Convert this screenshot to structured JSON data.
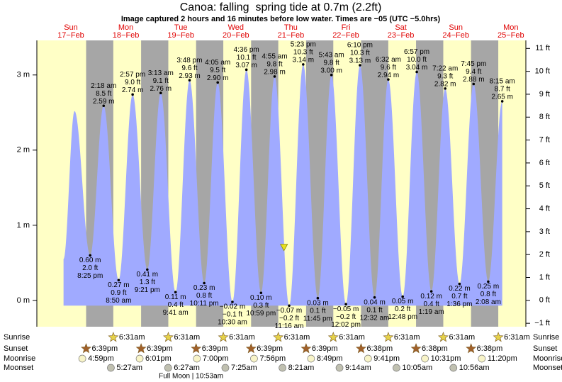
{
  "chart_data": {
    "type": "tide",
    "title": "Canoa: falling  spring tide at 0.7m (2.2ft)",
    "subtitle": "Image captured 2 hours and 16 minutes before low water. Times are −05 (UTC −5.0hrs)",
    "days": [
      {
        "weekday": "Sun",
        "date": "17−Feb"
      },
      {
        "weekday": "Mon",
        "date": "18−Feb"
      },
      {
        "weekday": "Tue",
        "date": "19−Feb"
      },
      {
        "weekday": "Wed",
        "date": "20−Feb"
      },
      {
        "weekday": "Thu",
        "date": "21−Feb"
      },
      {
        "weekday": "Fri",
        "date": "22−Feb"
      },
      {
        "weekday": "Sat",
        "date": "23−Feb"
      },
      {
        "weekday": "Sun",
        "date": "24−Feb"
      },
      {
        "weekday": "Mon",
        "date": "25−Feb"
      }
    ],
    "ylim": [
      -0.35,
      3.46
    ],
    "yticks": [
      {
        "value": 0,
        "label": "0 m"
      },
      {
        "value": 1,
        "label": "1 m"
      },
      {
        "value": 2,
        "label": "2 m"
      },
      {
        "value": 3,
        "label": "3 m"
      }
    ],
    "y2lim": [
      -1.15,
      11.35
    ],
    "y2ticks": [
      {
        "value": -1,
        "label": "−1 ft"
      },
      {
        "value": 0,
        "label": "0 ft"
      },
      {
        "value": 1,
        "label": "1 ft"
      },
      {
        "value": 2,
        "label": "2 ft"
      },
      {
        "value": 3,
        "label": "3 ft"
      },
      {
        "value": 4,
        "label": "4 ft"
      },
      {
        "value": 5,
        "label": "5 ft"
      },
      {
        "value": 6,
        "label": "6 ft"
      },
      {
        "value": 7,
        "label": "7 ft"
      },
      {
        "value": 8,
        "label": "8 ft"
      },
      {
        "value": 9,
        "label": "9 ft"
      },
      {
        "value": 10,
        "label": "10 ft"
      },
      {
        "value": 11,
        "label": "11 ft"
      }
    ],
    "tides": [
      {
        "day": 0,
        "hour": 8.8,
        "value": 0.55
      },
      {
        "day": 0,
        "hour": 13.6,
        "value": 2.52
      },
      {
        "day": 0,
        "time": "8:25 pm",
        "value": 0.6,
        "value_label": "0.60 m",
        "feet": "2.0 ft"
      },
      {
        "day": 1,
        "time": "2:18 am",
        "value": 2.59,
        "value_label": "2.59 m",
        "feet": "8.5 ft"
      },
      {
        "day": 1,
        "time": "8:50 am",
        "value": 0.27,
        "value_label": "0.27 m",
        "feet": "0.9 ft"
      },
      {
        "day": 1,
        "time": "2:57 pm",
        "value": 2.74,
        "value_label": "2.74 m",
        "feet": "9.0 ft"
      },
      {
        "day": 1,
        "time": "9:21 pm",
        "value": 0.41,
        "value_label": "0.41 m",
        "feet": "1.3 ft"
      },
      {
        "day": 2,
        "time": "3:13 am",
        "value": 2.76,
        "value_label": "2.76 m",
        "feet": "9.1 ft"
      },
      {
        "day": 2,
        "time": "9:41 am",
        "value": 0.11,
        "value_label": "0.11 m",
        "feet": "0.4 ft"
      },
      {
        "day": 2,
        "time": "3:48 pm",
        "value": 2.93,
        "value_label": "2.93 m",
        "feet": "9.6 ft"
      },
      {
        "day": 2,
        "time": "10:11 pm",
        "value": 0.23,
        "value_label": "0.23 m",
        "feet": "0.8 ft"
      },
      {
        "day": 3,
        "time": "4:05 am",
        "value": 2.9,
        "value_label": "2.90 m",
        "feet": "9.5 ft"
      },
      {
        "day": 3,
        "time": "10:30 am",
        "value": -0.02,
        "value_label": "−0.02 m",
        "feet": "−0.1 ft"
      },
      {
        "day": 3,
        "time": "4:36 pm",
        "value": 3.07,
        "value_label": "3.07 m",
        "feet": "10.1 ft"
      },
      {
        "day": 3,
        "time": "10:59 pm",
        "value": 0.1,
        "value_label": "0.10 m",
        "feet": "0.3 ft"
      },
      {
        "day": 4,
        "time": "4:55 am",
        "value": 2.98,
        "value_label": "2.98 m",
        "feet": "9.8 ft"
      },
      {
        "day": 4,
        "time": "11:16 am",
        "value": -0.07,
        "value_label": "−0.07 m",
        "feet": "−0.2 ft"
      },
      {
        "day": 4,
        "time": "5:23 pm",
        "value": 3.14,
        "value_label": "3.14 m",
        "feet": "10.3 ft"
      },
      {
        "day": 4,
        "time": "11:45 pm",
        "value": 0.03,
        "value_label": "0.03 m",
        "feet": "0.1 ft"
      },
      {
        "day": 5,
        "time": "5:43 am",
        "value": 3.0,
        "value_label": "3.00 m",
        "feet": "9.8 ft"
      },
      {
        "day": 5,
        "time": "12:02 pm",
        "value": -0.05,
        "value_label": "−0.05 m",
        "feet": "−0.2 ft"
      },
      {
        "day": 5,
        "time": "6:10 pm",
        "value": 3.13,
        "value_label": "3.13 m",
        "feet": "10.3 ft"
      },
      {
        "day": 6,
        "time": "12:32 am",
        "value": 0.04,
        "value_label": "0.04 m",
        "feet": "0.1 ft"
      },
      {
        "day": 6,
        "time": "6:32 am",
        "value": 2.94,
        "value_label": "2.94 m",
        "feet": "9.6 ft"
      },
      {
        "day": 6,
        "time": "12:48 pm",
        "value": 0.05,
        "value_label": "0.05 m",
        "feet": "0.2 ft"
      },
      {
        "day": 6,
        "time": "6:57 pm",
        "value": 3.04,
        "value_label": "3.04 m",
        "feet": "10.0 ft"
      },
      {
        "day": 7,
        "time": "1:19 am",
        "value": 0.12,
        "value_label": "0.12 m",
        "feet": "0.4 ft"
      },
      {
        "day": 7,
        "time": "7:22 am",
        "value": 2.82,
        "value_label": "2.82 m",
        "feet": "9.3 ft"
      },
      {
        "day": 7,
        "time": "1:36 pm",
        "value": 0.22,
        "value_label": "0.22 m",
        "feet": "0.7 ft"
      },
      {
        "day": 7,
        "time": "7:45 pm",
        "value": 2.88,
        "value_label": "2.88 m",
        "feet": "9.4 ft"
      },
      {
        "day": 8,
        "time": "2:08 am",
        "value": 0.25,
        "value_label": "0.25 m",
        "feet": "0.8 ft"
      },
      {
        "day": 8,
        "time": "8:15 am",
        "value": 2.65,
        "value_label": "2.65 m",
        "feet": "8.7 ft"
      }
    ],
    "now": {
      "day": 4,
      "hour": 9.0,
      "value": 0.7
    },
    "events": [
      {
        "name": "Sunrise",
        "icon": "sunrise",
        "items": [
          {
            "day": 1,
            "time": "6:31am"
          },
          {
            "day": 2,
            "time": "6:31am"
          },
          {
            "day": 3,
            "time": "6:31am"
          },
          {
            "day": 4,
            "time": "6:31am"
          },
          {
            "day": 5,
            "time": "6:31am"
          },
          {
            "day": 6,
            "time": "6:31am"
          },
          {
            "day": 7,
            "time": "6:31am"
          },
          {
            "day": 8,
            "time": "6:31am"
          }
        ]
      },
      {
        "name": "Sunset",
        "icon": "sunset",
        "items": [
          {
            "day": 0,
            "time": "6:39pm"
          },
          {
            "day": 1,
            "time": "6:39pm"
          },
          {
            "day": 2,
            "time": "6:39pm"
          },
          {
            "day": 3,
            "time": "6:39pm"
          },
          {
            "day": 4,
            "time": "6:39pm"
          },
          {
            "day": 5,
            "time": "6:38pm"
          },
          {
            "day": 6,
            "time": "6:38pm"
          },
          {
            "day": 7,
            "time": "6:38pm"
          }
        ]
      },
      {
        "name": "Moonrise",
        "icon": "moonrise",
        "items": [
          {
            "day": 0,
            "time": "4:59pm"
          },
          {
            "day": 1,
            "time": "6:01pm"
          },
          {
            "day": 2,
            "time": "7:00pm"
          },
          {
            "day": 3,
            "time": "7:56pm"
          },
          {
            "day": 4,
            "time": "8:49pm"
          },
          {
            "day": 5,
            "time": "9:41pm"
          },
          {
            "day": 6,
            "time": "10:31pm"
          },
          {
            "day": 7,
            "time": "11:20pm"
          }
        ]
      },
      {
        "name": "Moonset",
        "icon": "moonset",
        "items": [
          {
            "day": 1,
            "time": "5:27am"
          },
          {
            "day": 2,
            "time": "6:27am"
          },
          {
            "day": 3,
            "time": "7:25am"
          },
          {
            "day": 4,
            "time": "8:21am"
          },
          {
            "day": 5,
            "time": "9:14am"
          },
          {
            "day": 6,
            "time": "10:05am"
          },
          {
            "day": 7,
            "time": "10:56am"
          }
        ]
      }
    ],
    "full_moon": {
      "day": 2,
      "label": "Full Moon | 10:53am"
    }
  }
}
